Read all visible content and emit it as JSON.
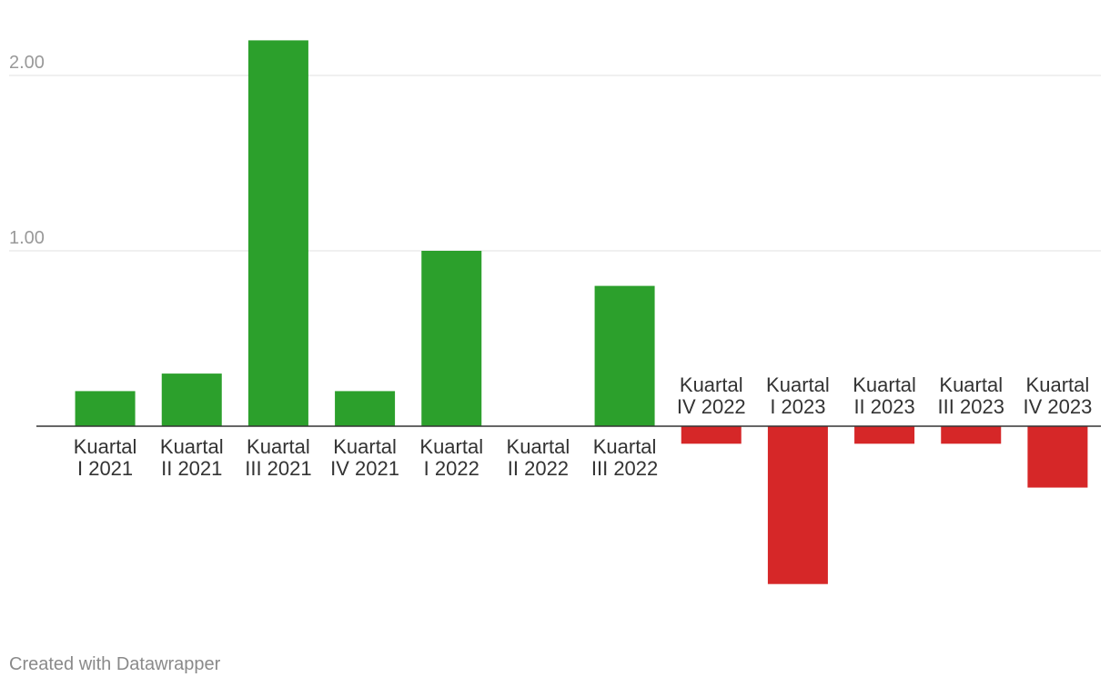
{
  "chart_data": {
    "type": "bar",
    "categories": [
      [
        "Kuartal",
        "I 2021"
      ],
      [
        "Kuartal",
        "II 2021"
      ],
      [
        "Kuartal",
        "III 2021"
      ],
      [
        "Kuartal",
        "IV 2021"
      ],
      [
        "Kuartal",
        "I 2022"
      ],
      [
        "Kuartal",
        "II 2022"
      ],
      [
        "Kuartal",
        "III 2022"
      ],
      [
        "Kuartal",
        "IV 2022"
      ],
      [
        "Kuartal",
        "I 2023"
      ],
      [
        "Kuartal",
        "II 2023"
      ],
      [
        "Kuartal",
        "III 2023"
      ],
      [
        "Kuartal",
        "IV 2023"
      ]
    ],
    "values": [
      0.2,
      0.3,
      2.2,
      0.2,
      1.0,
      0.0,
      0.8,
      -0.1,
      -0.9,
      -0.1,
      -0.1,
      -0.35
    ],
    "y_ticks": [
      "1.00",
      "2.00"
    ],
    "y_tick_values": [
      1.0,
      2.0
    ],
    "ylim": [
      -1.1,
      2.3
    ],
    "grid": true,
    "colors": {
      "positive": "#2ca02c",
      "negative": "#d62728",
      "gridline": "#e0e0e0",
      "baseline": "#333333",
      "tick_text": "#999999",
      "label_text": "#333333"
    }
  },
  "credit": "Created with Datawrapper"
}
